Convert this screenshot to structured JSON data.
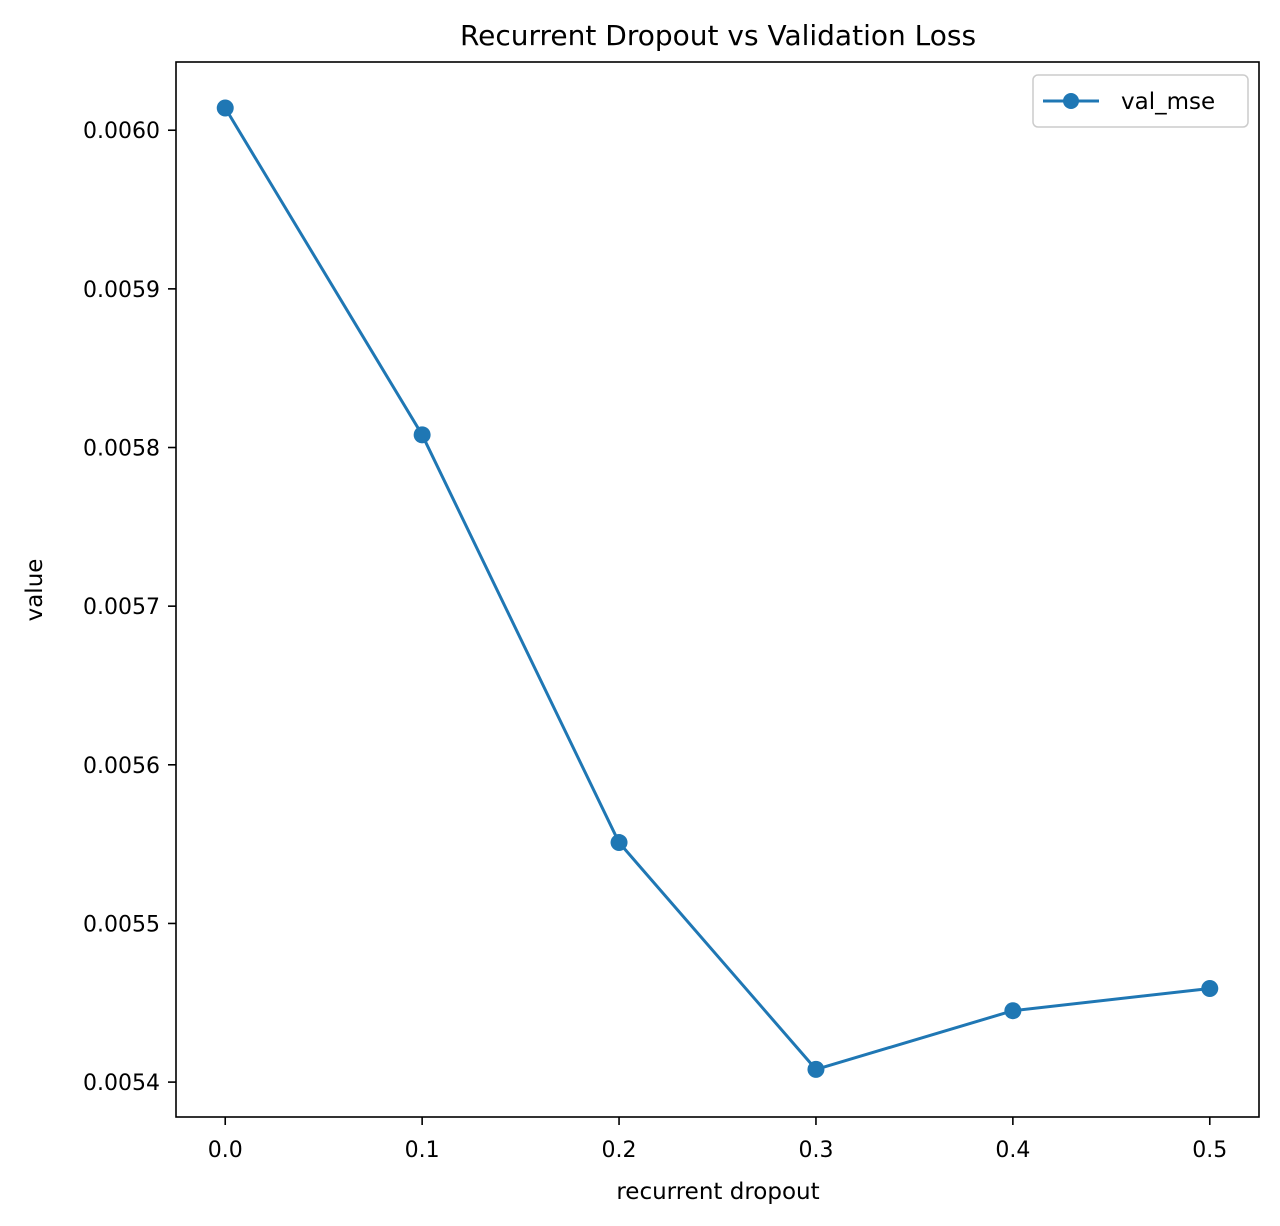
{
  "chart_data": {
    "type": "line",
    "title": "Recurrent Dropout vs Validation Loss",
    "xlabel": "recurrent dropout",
    "ylabel": "value",
    "x": [
      0.0,
      0.1,
      0.2,
      0.3,
      0.4,
      0.5
    ],
    "x_tick_labels": [
      "0.0",
      "0.1",
      "0.2",
      "0.3",
      "0.4",
      "0.5"
    ],
    "y_tick_values": [
      0.0054,
      0.0055,
      0.0056,
      0.0057,
      0.0058,
      0.0059,
      0.006
    ],
    "y_tick_labels": [
      "0.0054",
      "0.0055",
      "0.0056",
      "0.0057",
      "0.0058",
      "0.0059",
      "0.0060"
    ],
    "xlim": [
      -0.025,
      0.525
    ],
    "ylim": [
      0.005378,
      0.006043
    ],
    "grid": false,
    "legend_position": "upper right",
    "series": [
      {
        "name": "val_mse",
        "color": "#1f77b4",
        "marker": "circle",
        "values": [
          0.006014,
          0.005808,
          0.005551,
          0.005408,
          0.005445,
          0.005459
        ]
      }
    ]
  }
}
